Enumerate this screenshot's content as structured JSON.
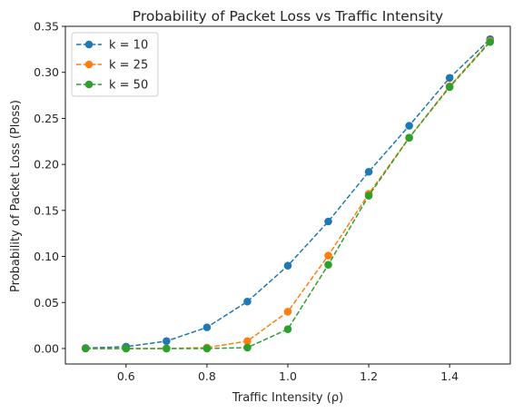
{
  "chart_data": {
    "type": "line",
    "title": "Probability of Packet Loss vs Traffic Intensity",
    "xlabel": "Traffic Intensity (ρ)",
    "ylabel": "Probability of Packet Loss (Ploss)",
    "x": [
      0.5,
      0.6,
      0.7,
      0.8,
      0.9,
      1.0,
      1.1,
      1.2,
      1.3,
      1.4,
      1.5
    ],
    "xlim": [
      0.45,
      1.55
    ],
    "ylim": [
      -0.0168,
      0.35
    ],
    "xticks": [
      0.6,
      0.8,
      1.0,
      1.2,
      1.4
    ],
    "yticks": [
      0.0,
      0.05,
      0.1,
      0.15,
      0.2,
      0.25,
      0.3,
      0.35
    ],
    "xtick_labels": [
      "0.6",
      "0.8",
      "1.0",
      "1.2",
      "1.4"
    ],
    "ytick_labels": [
      "0.00",
      "0.05",
      "0.10",
      "0.15",
      "0.20",
      "0.25",
      "0.30",
      "0.35"
    ],
    "grid": false,
    "legend_position": "top-left",
    "line_style": "dashed",
    "marker": "circle",
    "series": [
      {
        "name": "k = 10",
        "color": "#1f77b4",
        "values": [
          0.0005,
          0.002,
          0.008,
          0.023,
          0.051,
          0.09,
          0.138,
          0.192,
          0.242,
          0.294,
          0.336
        ]
      },
      {
        "name": "k = 25",
        "color": "#ff7f0e",
        "values": [
          0.0,
          0.0,
          0.0,
          0.001,
          0.008,
          0.04,
          0.101,
          0.168,
          0.229,
          0.285,
          0.334
        ]
      },
      {
        "name": "k = 50",
        "color": "#2ca02c",
        "values": [
          0.0,
          0.0,
          0.0,
          0.0,
          0.001,
          0.021,
          0.091,
          0.166,
          0.229,
          0.284,
          0.333
        ]
      }
    ]
  }
}
